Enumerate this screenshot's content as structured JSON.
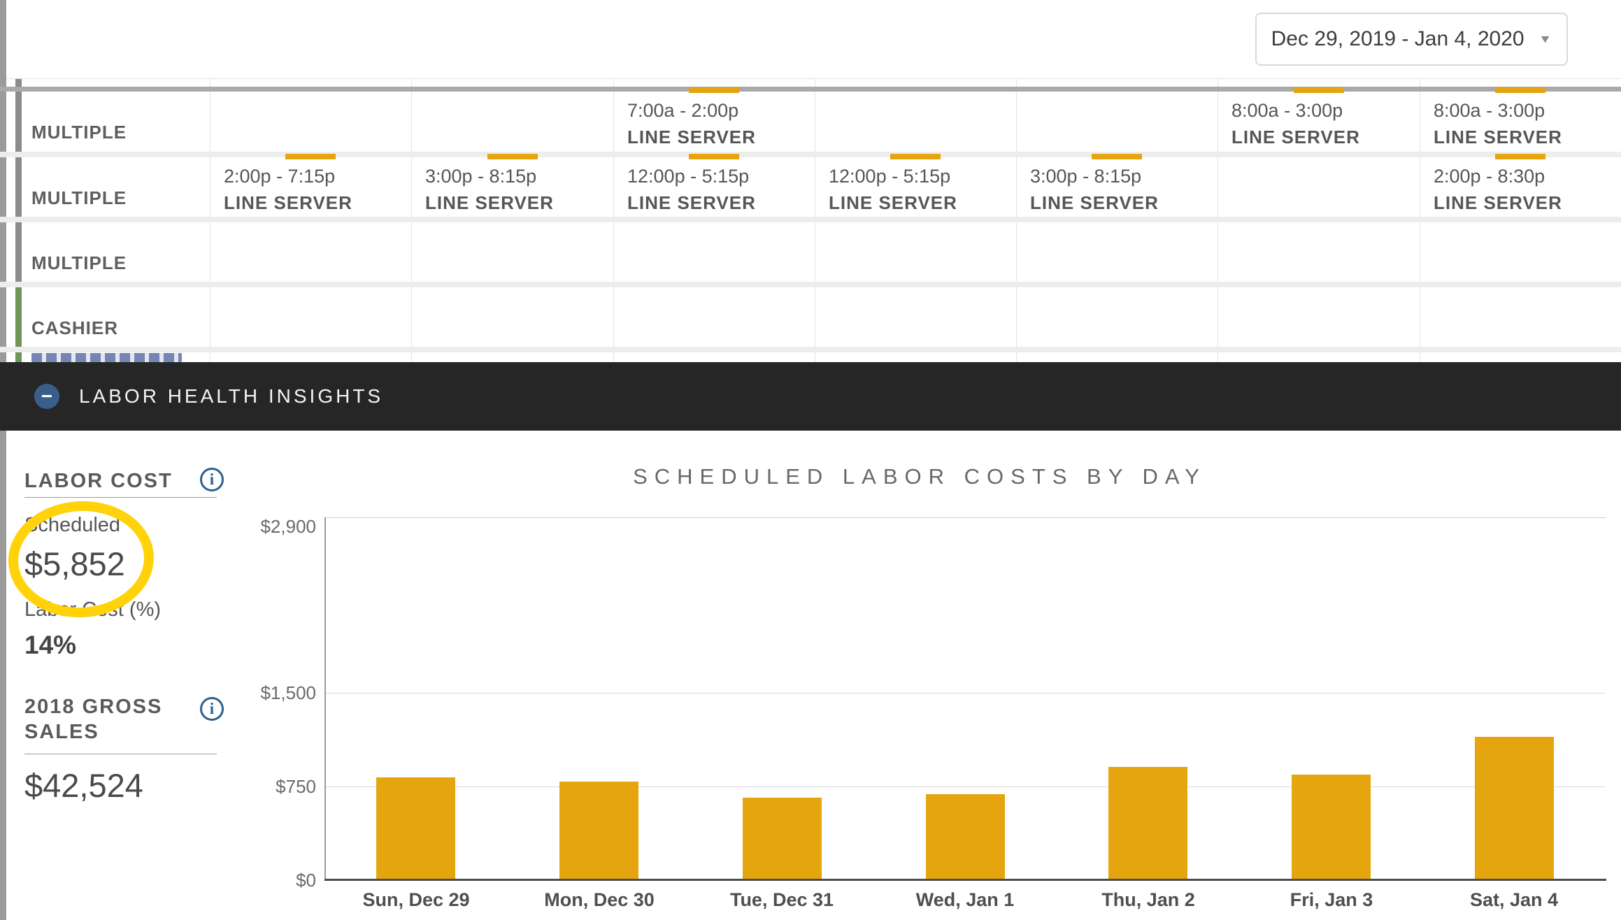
{
  "date_range": {
    "label": "Dec 29, 2019 - Jan 4, 2020"
  },
  "icons": {
    "caret_down": "▼",
    "collapse_minus": "−",
    "info": "i"
  },
  "colors": {
    "gold": "#E5A50F",
    "annotation": "#FFD20A",
    "band_bg": "#262626",
    "accent_gray": "#8B8B8B",
    "accent_green": "#6E9458",
    "info_blue": "#2D5F8F",
    "collapse_circle_blue": "#3A5E8C"
  },
  "schedule": {
    "rows": [
      {
        "label": "MULTIPLE",
        "accent": "gray",
        "shifts": [
          {
            "col": 2,
            "time": "7:00a - 2:00p",
            "role": "LINE SERVER"
          },
          {
            "col": 5,
            "time": "8:00a - 3:00p",
            "role": "LINE SERVER"
          },
          {
            "col": 6,
            "time": "8:00a - 3:00p",
            "role": "LINE SERVER"
          }
        ]
      },
      {
        "label": "MULTIPLE",
        "accent": "gray",
        "shifts": [
          {
            "col": 0,
            "time": "2:00p - 7:15p",
            "role": "LINE SERVER"
          },
          {
            "col": 1,
            "time": "3:00p - 8:15p",
            "role": "LINE SERVER"
          },
          {
            "col": 2,
            "time": "12:00p - 5:15p",
            "role": "LINE SERVER"
          },
          {
            "col": 3,
            "time": "12:00p - 5:15p",
            "role": "LINE SERVER"
          },
          {
            "col": 4,
            "time": "3:00p - 8:15p",
            "role": "LINE SERVER"
          },
          {
            "col": 6,
            "time": "2:00p - 8:30p",
            "role": "LINE SERVER"
          }
        ]
      },
      {
        "label": "MULTIPLE",
        "accent": "gray",
        "shifts": []
      },
      {
        "label": "CASHIER",
        "accent": "green",
        "shifts": []
      }
    ],
    "partial_row": {
      "accent": "green"
    }
  },
  "insights": {
    "title": "LABOR HEALTH INSIGHTS"
  },
  "labor_cost": {
    "heading": "LABOR COST",
    "scheduled_label": "Scheduled",
    "scheduled_value": "$5,852",
    "pct_label": "Labor Cost (%)",
    "pct_value": "14%"
  },
  "gross_sales": {
    "heading": "2018 GROSS SALES",
    "value": "$42,524"
  },
  "chart_data": {
    "type": "bar",
    "title": "SCHEDULED LABOR COSTS BY DAY",
    "categories": [
      "Sun, Dec 29",
      "Mon, Dec 30",
      "Tue, Dec 31",
      "Wed, Jan 1",
      "Thu, Jan 2",
      "Fri, Jan 3",
      "Sat, Jan 4"
    ],
    "values": [
      820,
      790,
      660,
      688,
      905,
      845,
      1144
    ],
    "xlabel": "",
    "ylabel": "",
    "ylim": [
      0,
      2900
    ],
    "y_ticks": [
      {
        "label": "$2,900",
        "value": 2900
      },
      {
        "label": "$1,500",
        "value": 1500
      },
      {
        "label": "$750",
        "value": 750
      },
      {
        "label": "$0",
        "value": 0
      }
    ],
    "gridline_values": [
      1500,
      750
    ],
    "bar_color": "#E5A50F",
    "legend": "none",
    "grid": "horizontal"
  }
}
